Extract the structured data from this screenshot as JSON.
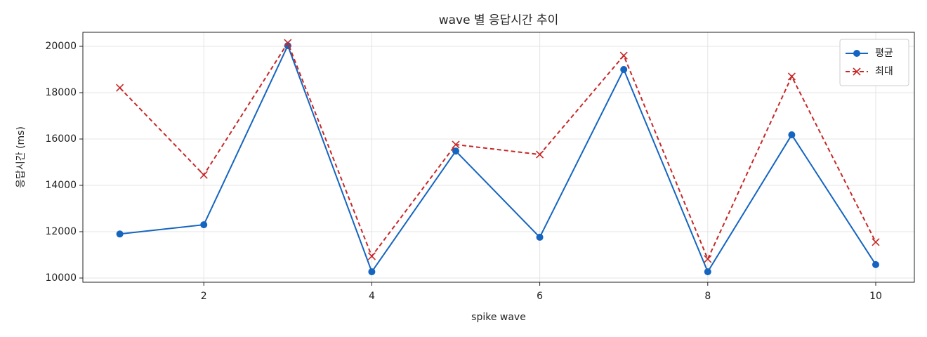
{
  "chart_data": {
    "type": "line",
    "title": "wave 별 응답시간 추이",
    "xlabel": "spike wave",
    "ylabel": "응답시간 (ms)",
    "x": [
      1,
      2,
      3,
      4,
      5,
      6,
      7,
      8,
      9,
      10
    ],
    "series": [
      {
        "name": "평균",
        "color": "#1565c0",
        "linestyle": "solid",
        "marker": "o",
        "values": [
          11900,
          12300,
          20030,
          10270,
          15480,
          11760,
          19000,
          10270,
          16180,
          10580
        ]
      },
      {
        "name": "최대",
        "color": "#c62828",
        "linestyle": "dashed",
        "marker": "x",
        "values": [
          18210,
          14450,
          20150,
          10940,
          15760,
          15330,
          19600,
          10820,
          18700,
          11550
        ]
      }
    ],
    "xlim": [
      0.56,
      10.46
    ],
    "ylim": [
      9818,
      20606
    ],
    "xticks": [
      2,
      4,
      6,
      8,
      10
    ],
    "yticks": [
      10000,
      12000,
      14000,
      16000,
      18000,
      20000
    ],
    "grid": true,
    "legend": "upper right"
  }
}
